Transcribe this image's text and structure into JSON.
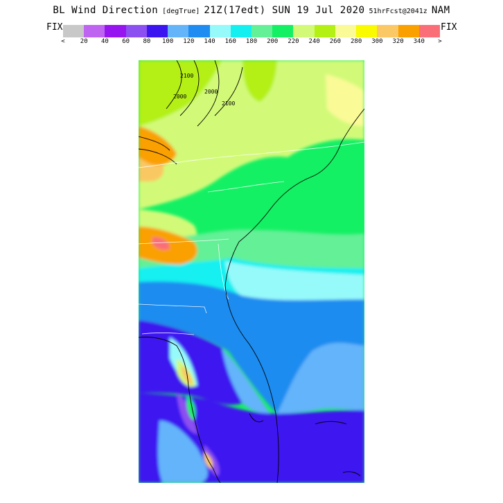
{
  "title": {
    "main": "BL Wind Direction",
    "unit": "[degTrue]",
    "time": "21Z(17edt) SUN 19 Jul 2020",
    "forecast": "51hrFcst@2041z",
    "model": "NAM"
  },
  "colorbar": {
    "left_label": "FIX",
    "right_label": "FIX",
    "colors": [
      "#c8c8c8",
      "#be64f0",
      "#9614f0",
      "#8c50f0",
      "#3c14f0",
      "#64b4fa",
      "#1e8cf0",
      "#96fafa",
      "#14f0f0",
      "#64f096",
      "#14f064",
      "#d2fa78",
      "#b4f014",
      "#fafa96",
      "#fafa00",
      "#fac864",
      "#faa000",
      "#fa6e78"
    ],
    "tick_labels": [
      "<",
      "20",
      "40",
      "60",
      "80",
      "100",
      "120",
      "140",
      "160",
      "180",
      "200",
      "220",
      "240",
      "260",
      "280",
      "300",
      "320",
      "340",
      ">"
    ]
  },
  "map": {
    "region": "southeastern-us",
    "contour_labels": [
      "2100",
      "2100",
      "2000",
      "2000"
    ]
  }
}
